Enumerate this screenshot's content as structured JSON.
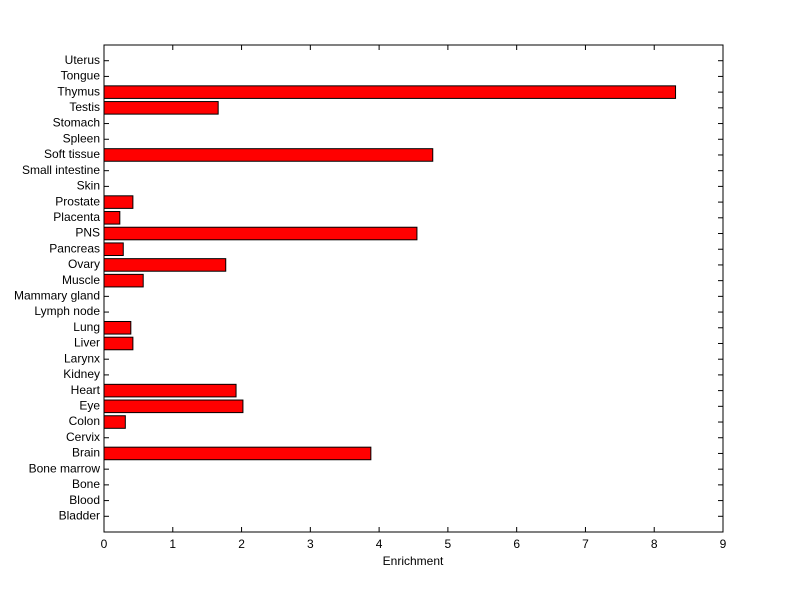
{
  "chart_data": {
    "type": "barh",
    "categories": [
      "Bladder",
      "Blood",
      "Bone",
      "Bone marrow",
      "Brain",
      "Cervix",
      "Colon",
      "Eye",
      "Heart",
      "Kidney",
      "Larynx",
      "Liver",
      "Lung",
      "Lymph node",
      "Mammary gland",
      "Muscle",
      "Ovary",
      "Pancreas",
      "PNS",
      "Placenta",
      "Prostate",
      "Skin",
      "Small intestine",
      "Soft tissue",
      "Spleen",
      "Stomach",
      "Testis",
      "Thymus",
      "Tongue",
      "Uterus"
    ],
    "values": [
      0,
      0,
      0,
      0,
      3.88,
      0,
      0.31,
      2.02,
      1.92,
      0,
      0,
      0.42,
      0.39,
      0,
      0,
      0.57,
      1.77,
      0.28,
      4.55,
      0.23,
      0.42,
      0,
      0,
      4.78,
      0,
      0,
      1.66,
      8.31,
      0,
      0
    ],
    "color": "#ff0000",
    "xlabel": "Enrichment",
    "xlim": [
      0,
      9
    ],
    "xticks": [
      0,
      1,
      2,
      3,
      4,
      5,
      6,
      7,
      8,
      9
    ]
  }
}
